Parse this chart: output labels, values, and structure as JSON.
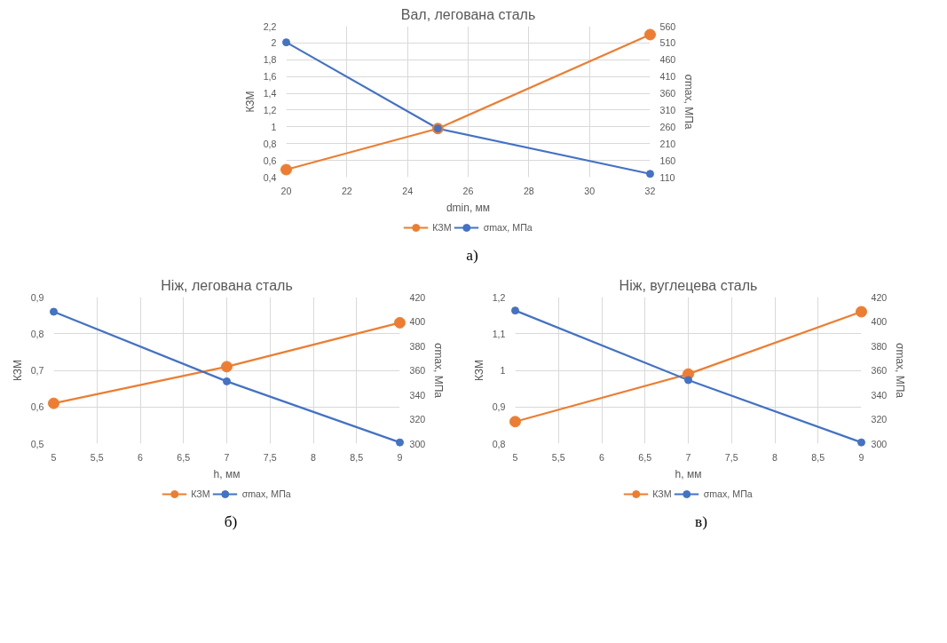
{
  "chart_data": [
    {
      "type": "line",
      "title": "Вал, легована сталь",
      "xlabel": "dmin, мм",
      "ylabel": "КЗМ",
      "y2label": "σmax, МПа",
      "x": [
        20,
        25,
        32
      ],
      "xlim": [
        20,
        32
      ],
      "xticks": [
        20,
        22,
        24,
        26,
        28,
        30,
        32
      ],
      "ylim": [
        0.4,
        2.2
      ],
      "yticks": [
        {
          "value": 0.4,
          "label": "0,4"
        },
        {
          "value": 0.6,
          "label": "0,6"
        },
        {
          "value": 0.8,
          "label": "0,8"
        },
        1,
        {
          "value": 1.2,
          "label": "1,2"
        },
        {
          "value": 1.4,
          "label": "1,4"
        },
        {
          "value": 1.6,
          "label": "1,6"
        },
        {
          "value": 1.8,
          "label": "1,8"
        },
        2,
        {
          "value": 2.2,
          "label": "2,2"
        }
      ],
      "y2lim": [
        110,
        560
      ],
      "y2ticks": [
        110,
        160,
        210,
        260,
        310,
        360,
        410,
        460,
        510,
        560
      ],
      "grid": true,
      "legend": "bottom",
      "marker": "circle",
      "line_style": "solid",
      "annotations": [
        "а)"
      ],
      "series": [
        {
          "name": "КЗМ",
          "color": "#ed7d31",
          "values": [
            0.49,
            0.98,
            2.1
          ]
        },
        {
          "name": "σmax, МПа",
          "color": "#4472c4",
          "values": [
            512,
            255,
            120
          ],
          "axis": "y2"
        }
      ]
    },
    {
      "type": "line",
      "title": "Ніж, легована сталь",
      "xlabel": "h, мм",
      "ylabel": "КЗМ",
      "y2label": "σmax, МПа",
      "x": [
        5,
        7,
        9
      ],
      "xlim": [
        5,
        9
      ],
      "xticks": [
        5,
        {
          "value": 5.5,
          "label": "5,5"
        },
        6,
        {
          "value": 6.5,
          "label": "6,5"
        },
        7,
        {
          "value": 7.5,
          "label": "7,5"
        },
        8,
        {
          "value": 8.5,
          "label": "8,5"
        },
        9
      ],
      "ylim": [
        0.5,
        0.9
      ],
      "yticks": [
        {
          "value": 0.5,
          "label": "0,5"
        },
        {
          "value": 0.6,
          "label": "0,6"
        },
        {
          "value": 0.7,
          "label": "0,7"
        },
        {
          "value": 0.8,
          "label": "0,8"
        },
        {
          "value": 0.9,
          "label": "0,9"
        }
      ],
      "y2lim": [
        300,
        420
      ],
      "y2ticks": [
        300,
        320,
        340,
        360,
        380,
        400,
        420
      ],
      "grid": true,
      "legend": "bottom",
      "marker": "circle",
      "line_style": "solid",
      "annotations": [
        "б)"
      ],
      "series": [
        {
          "name": "КЗМ",
          "color": "#ed7d31",
          "values": [
            0.61,
            0.71,
            0.83
          ]
        },
        {
          "name": "σmax, МПа",
          "color": "#4472c4",
          "values": [
            408,
            351,
            301
          ],
          "axis": "y2"
        }
      ]
    },
    {
      "type": "line",
      "title": "Ніж, вуглецева сталь",
      "xlabel": "h, мм",
      "ylabel": "КЗМ",
      "y2label": "σmax, МПа",
      "x": [
        5,
        7,
        9
      ],
      "xlim": [
        5,
        9
      ],
      "xticks": [
        5,
        {
          "value": 5.5,
          "label": "5,5"
        },
        6,
        {
          "value": 6.5,
          "label": "6,5"
        },
        7,
        {
          "value": 7.5,
          "label": "7,5"
        },
        8,
        {
          "value": 8.5,
          "label": "8,5"
        },
        9
      ],
      "ylim": [
        0.8,
        1.2
      ],
      "yticks": [
        {
          "value": 0.8,
          "label": "0,8"
        },
        {
          "value": 0.9,
          "label": "0,9"
        },
        1,
        {
          "value": 1.1,
          "label": "1,1"
        },
        {
          "value": 1.2,
          "label": "1,2"
        }
      ],
      "y2lim": [
        300,
        420
      ],
      "y2ticks": [
        300,
        320,
        340,
        360,
        380,
        400,
        420
      ],
      "grid": true,
      "legend": "bottom",
      "marker": "circle",
      "line_style": "solid",
      "annotations": [
        "в)"
      ],
      "series": [
        {
          "name": "КЗМ",
          "color": "#ed7d31",
          "values": [
            0.86,
            0.99,
            1.16
          ]
        },
        {
          "name": "σmax, МПа",
          "color": "#4472c4",
          "values": [
            409,
            352,
            301
          ],
          "axis": "y2"
        }
      ]
    }
  ]
}
